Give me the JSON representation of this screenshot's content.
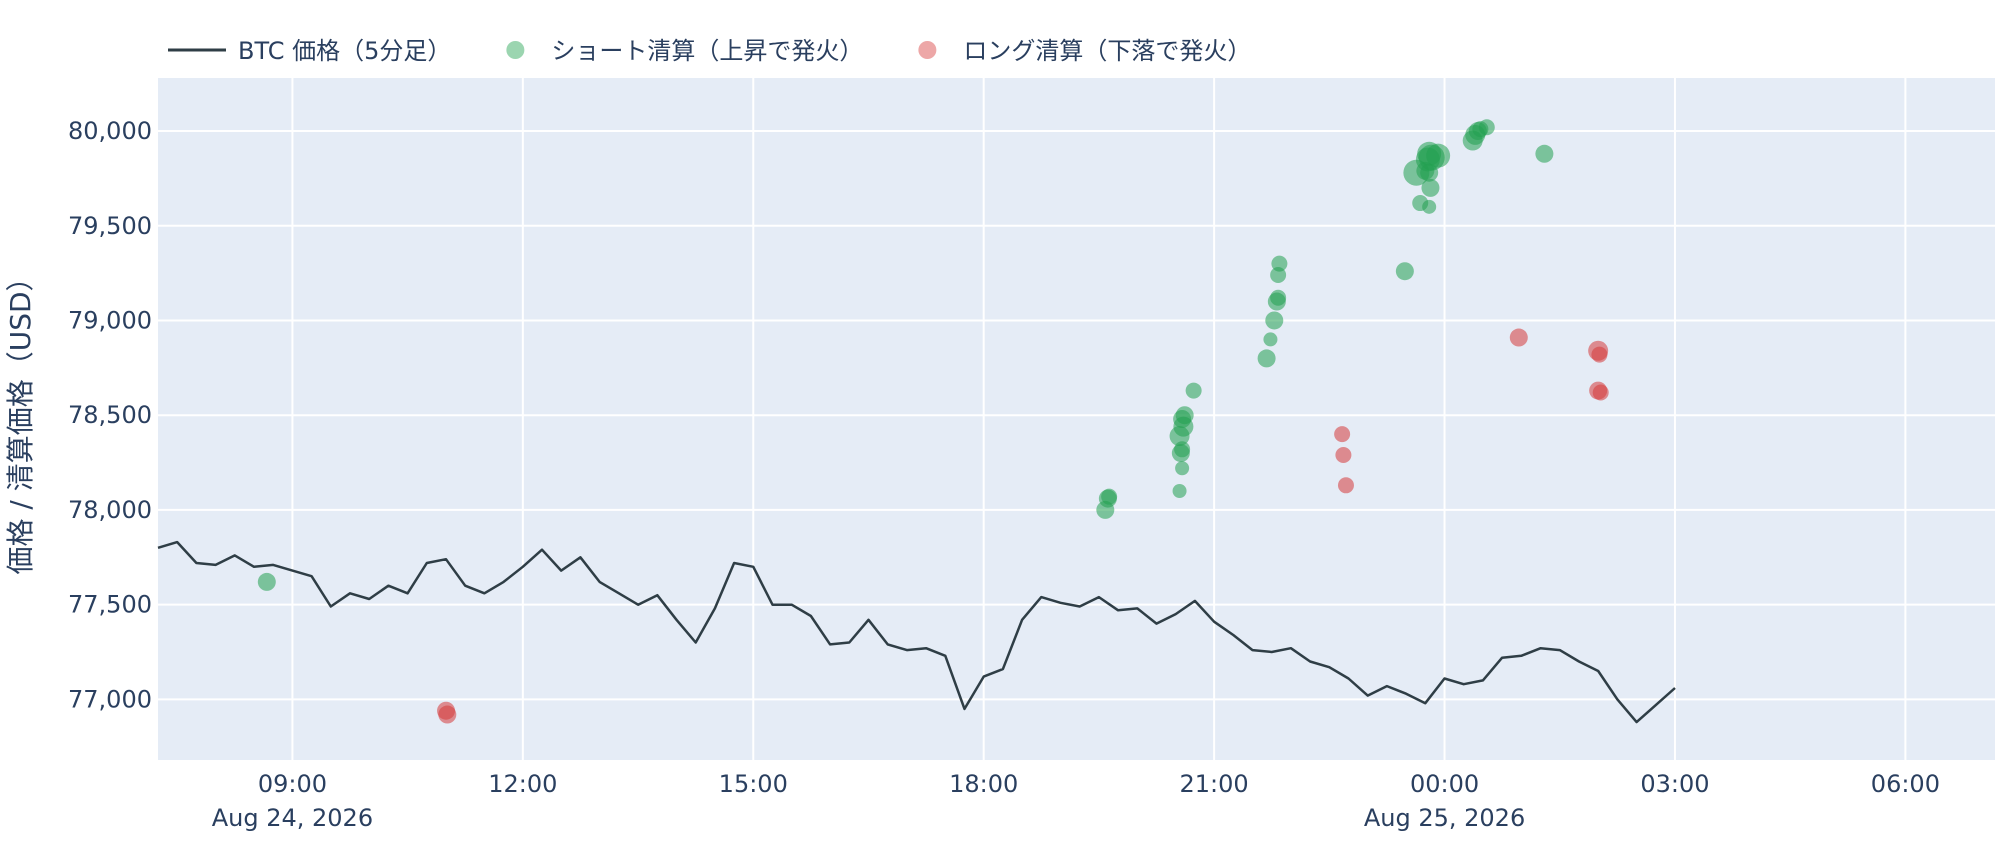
{
  "chart_data": {
    "type": "line",
    "title": "",
    "xlabel": "",
    "ylabel": "価格 / 清算価格（USD）",
    "ylim": [
      76680,
      80280
    ],
    "xlim": [
      "2026-08-24 07:15",
      "2026-08-25 07:10"
    ],
    "grid": true,
    "legend_position": "top-left",
    "colors": {
      "plot_background": "#E5ECF6",
      "grid": "#ffffff",
      "price_line": "#2f3e46",
      "short": "#22a150",
      "long": "#d63b3b",
      "text": "#2a3f5f"
    },
    "legend": [
      {
        "label": "BTC 価格（5分足）",
        "kind": "line",
        "color": "#2f3e46"
      },
      {
        "label": "ショート清算（上昇で発火）",
        "kind": "marker",
        "color": "#22a150"
      },
      {
        "label": "ロング清算（下落で発火）",
        "kind": "marker",
        "color": "#d63b3b"
      }
    ],
    "y_ticks": [
      {
        "value": 77000,
        "label": "77,000"
      },
      {
        "value": 77500,
        "label": "77,500"
      },
      {
        "value": 78000,
        "label": "78,000"
      },
      {
        "value": 78500,
        "label": "78,500"
      },
      {
        "value": 79000,
        "label": "79,000"
      },
      {
        "value": 79500,
        "label": "79,500"
      },
      {
        "value": 80000,
        "label": "80,000"
      }
    ],
    "x_ticks": [
      {
        "value": "2026-08-24 09:00",
        "label": "09:00",
        "sublabel": "Aug 24, 2026"
      },
      {
        "value": "2026-08-24 12:00",
        "label": "12:00",
        "sublabel": ""
      },
      {
        "value": "2026-08-24 15:00",
        "label": "15:00",
        "sublabel": ""
      },
      {
        "value": "2026-08-24 18:00",
        "label": "18:00",
        "sublabel": ""
      },
      {
        "value": "2026-08-24 21:00",
        "label": "21:00",
        "sublabel": ""
      },
      {
        "value": "2026-08-25 00:00",
        "label": "00:00",
        "sublabel": "Aug 25, 2026"
      },
      {
        "value": "2026-08-25 03:00",
        "label": "03:00",
        "sublabel": ""
      },
      {
        "value": "2026-08-25 06:00",
        "label": "06:00",
        "sublabel": ""
      }
    ],
    "series": [
      {
        "name": "BTC 価格（5分足）",
        "type": "line",
        "points": [
          [
            "2026-08-24 07:15",
            77800
          ],
          [
            "2026-08-24 07:30",
            77830
          ],
          [
            "2026-08-24 07:45",
            77720
          ],
          [
            "2026-08-24 08:00",
            77710
          ],
          [
            "2026-08-24 08:15",
            77760
          ],
          [
            "2026-08-24 08:30",
            77700
          ],
          [
            "2026-08-24 08:45",
            77710
          ],
          [
            "2026-08-24 09:00",
            77680
          ],
          [
            "2026-08-24 09:15",
            77650
          ],
          [
            "2026-08-24 09:30",
            77490
          ],
          [
            "2026-08-24 09:45",
            77560
          ],
          [
            "2026-08-24 10:00",
            77530
          ],
          [
            "2026-08-24 10:15",
            77600
          ],
          [
            "2026-08-24 10:30",
            77560
          ],
          [
            "2026-08-24 10:45",
            77720
          ],
          [
            "2026-08-24 11:00",
            77740
          ],
          [
            "2026-08-24 11:15",
            77600
          ],
          [
            "2026-08-24 11:30",
            77560
          ],
          [
            "2026-08-24 11:45",
            77620
          ],
          [
            "2026-08-24 12:00",
            77700
          ],
          [
            "2026-08-24 12:15",
            77790
          ],
          [
            "2026-08-24 12:30",
            77680
          ],
          [
            "2026-08-24 12:45",
            77750
          ],
          [
            "2026-08-24 13:00",
            77620
          ],
          [
            "2026-08-24 13:15",
            77560
          ],
          [
            "2026-08-24 13:30",
            77500
          ],
          [
            "2026-08-24 13:45",
            77550
          ],
          [
            "2026-08-24 14:00",
            77420
          ],
          [
            "2026-08-24 14:15",
            77300
          ],
          [
            "2026-08-24 14:30",
            77480
          ],
          [
            "2026-08-24 14:45",
            77720
          ],
          [
            "2026-08-24 15:00",
            77700
          ],
          [
            "2026-08-24 15:15",
            77500
          ],
          [
            "2026-08-24 15:30",
            77500
          ],
          [
            "2026-08-24 15:45",
            77440
          ],
          [
            "2026-08-24 16:00",
            77290
          ],
          [
            "2026-08-24 16:15",
            77300
          ],
          [
            "2026-08-24 16:30",
            77420
          ],
          [
            "2026-08-24 16:45",
            77290
          ],
          [
            "2026-08-24 17:00",
            77260
          ],
          [
            "2026-08-24 17:15",
            77270
          ],
          [
            "2026-08-24 17:30",
            77230
          ],
          [
            "2026-08-24 17:45",
            76950
          ],
          [
            "2026-08-24 18:00",
            77120
          ],
          [
            "2026-08-24 18:15",
            77160
          ],
          [
            "2026-08-24 18:30",
            77420
          ],
          [
            "2026-08-24 18:45",
            77540
          ],
          [
            "2026-08-24 19:00",
            77510
          ],
          [
            "2026-08-24 19:15",
            77490
          ],
          [
            "2026-08-24 19:30",
            77540
          ],
          [
            "2026-08-24 19:45",
            77470
          ],
          [
            "2026-08-24 20:00",
            77480
          ],
          [
            "2026-08-24 20:15",
            77400
          ],
          [
            "2026-08-24 20:30",
            77450
          ],
          [
            "2026-08-24 20:45",
            77520
          ],
          [
            "2026-08-24 21:00",
            77410
          ],
          [
            "2026-08-24 21:15",
            77340
          ],
          [
            "2026-08-24 21:30",
            77260
          ],
          [
            "2026-08-24 21:45",
            77250
          ],
          [
            "2026-08-24 22:00",
            77270
          ],
          [
            "2026-08-24 22:15",
            77200
          ],
          [
            "2026-08-24 22:30",
            77170
          ],
          [
            "2026-08-24 22:45",
            77110
          ],
          [
            "2026-08-24 23:00",
            77020
          ],
          [
            "2026-08-24 23:15",
            77070
          ],
          [
            "2026-08-24 23:30",
            77030
          ],
          [
            "2026-08-24 23:45",
            76980
          ],
          [
            "2026-08-25 00:00",
            77110
          ],
          [
            "2026-08-25 00:15",
            77080
          ],
          [
            "2026-08-25 00:30",
            77100
          ],
          [
            "2026-08-25 00:45",
            77220
          ],
          [
            "2026-08-25 01:00",
            77230
          ],
          [
            "2026-08-25 01:15",
            77270
          ],
          [
            "2026-08-25 01:30",
            77260
          ],
          [
            "2026-08-25 01:45",
            77200
          ],
          [
            "2026-08-25 02:00",
            77150
          ],
          [
            "2026-08-25 02:15",
            77000
          ],
          [
            "2026-08-25 02:30",
            76880
          ],
          [
            "2026-08-25 02:45",
            76970
          ],
          [
            "2026-08-25 03:00",
            77060
          ]
        ]
      },
      {
        "name": "ショート清算（上昇で発火）",
        "type": "scatter",
        "points": [
          [
            "2026-08-24 08:40",
            77620,
            9
          ],
          [
            "2026-08-24 19:35",
            78000,
            9
          ],
          [
            "2026-08-24 19:37",
            78060,
            9
          ],
          [
            "2026-08-24 19:38",
            78070,
            8
          ],
          [
            "2026-08-24 20:33",
            78100,
            7
          ],
          [
            "2026-08-24 20:35",
            78220,
            7
          ],
          [
            "2026-08-24 20:34",
            78300,
            9
          ],
          [
            "2026-08-24 20:35",
            78320,
            8
          ],
          [
            "2026-08-24 20:33",
            78390,
            10
          ],
          [
            "2026-08-24 20:36",
            78440,
            10
          ],
          [
            "2026-08-24 20:35",
            78480,
            9
          ],
          [
            "2026-08-24 20:37",
            78500,
            9
          ],
          [
            "2026-08-24 20:44",
            78630,
            8
          ],
          [
            "2026-08-24 21:41",
            78800,
            9
          ],
          [
            "2026-08-24 21:44",
            78900,
            7
          ],
          [
            "2026-08-24 21:47",
            79000,
            9
          ],
          [
            "2026-08-24 21:49",
            79100,
            9
          ],
          [
            "2026-08-24 21:50",
            79120,
            8
          ],
          [
            "2026-08-24 21:50",
            79240,
            8
          ],
          [
            "2026-08-24 21:51",
            79300,
            8
          ],
          [
            "2026-08-24 23:29",
            79260,
            9
          ],
          [
            "2026-08-24 23:38",
            79780,
            13
          ],
          [
            "2026-08-24 23:41",
            79620,
            8
          ],
          [
            "2026-08-24 23:45",
            79790,
            9
          ],
          [
            "2026-08-24 23:47",
            79850,
            12
          ],
          [
            "2026-08-24 23:48",
            79880,
            12
          ],
          [
            "2026-08-24 23:50",
            79860,
            13
          ],
          [
            "2026-08-24 23:48",
            79780,
            9
          ],
          [
            "2026-08-24 23:49",
            79700,
            9
          ],
          [
            "2026-08-24 23:48",
            79600,
            7
          ],
          [
            "2026-08-24 23:55",
            79870,
            12
          ],
          [
            "2026-08-25 00:22",
            79950,
            10
          ],
          [
            "2026-08-25 00:24",
            79980,
            10
          ],
          [
            "2026-08-25 00:26",
            80000,
            9
          ],
          [
            "2026-08-25 00:28",
            80010,
            8
          ],
          [
            "2026-08-25 00:33",
            80020,
            8
          ],
          [
            "2026-08-25 01:18",
            79880,
            9
          ]
        ]
      },
      {
        "name": "ロング清算（下落で発火）",
        "type": "scatter",
        "points": [
          [
            "2026-08-24 11:00",
            76940,
            9
          ],
          [
            "2026-08-24 11:01",
            76920,
            9
          ],
          [
            "2026-08-24 22:40",
            78400,
            8
          ],
          [
            "2026-08-24 22:41",
            78290,
            8
          ],
          [
            "2026-08-24 22:43",
            78130,
            8
          ],
          [
            "2026-08-25 00:58",
            78910,
            9
          ],
          [
            "2026-08-25 02:00",
            78840,
            10
          ],
          [
            "2026-08-25 02:01",
            78820,
            8
          ],
          [
            "2026-08-25 02:00",
            78630,
            9
          ],
          [
            "2026-08-25 02:02",
            78620,
            8
          ]
        ]
      }
    ]
  }
}
